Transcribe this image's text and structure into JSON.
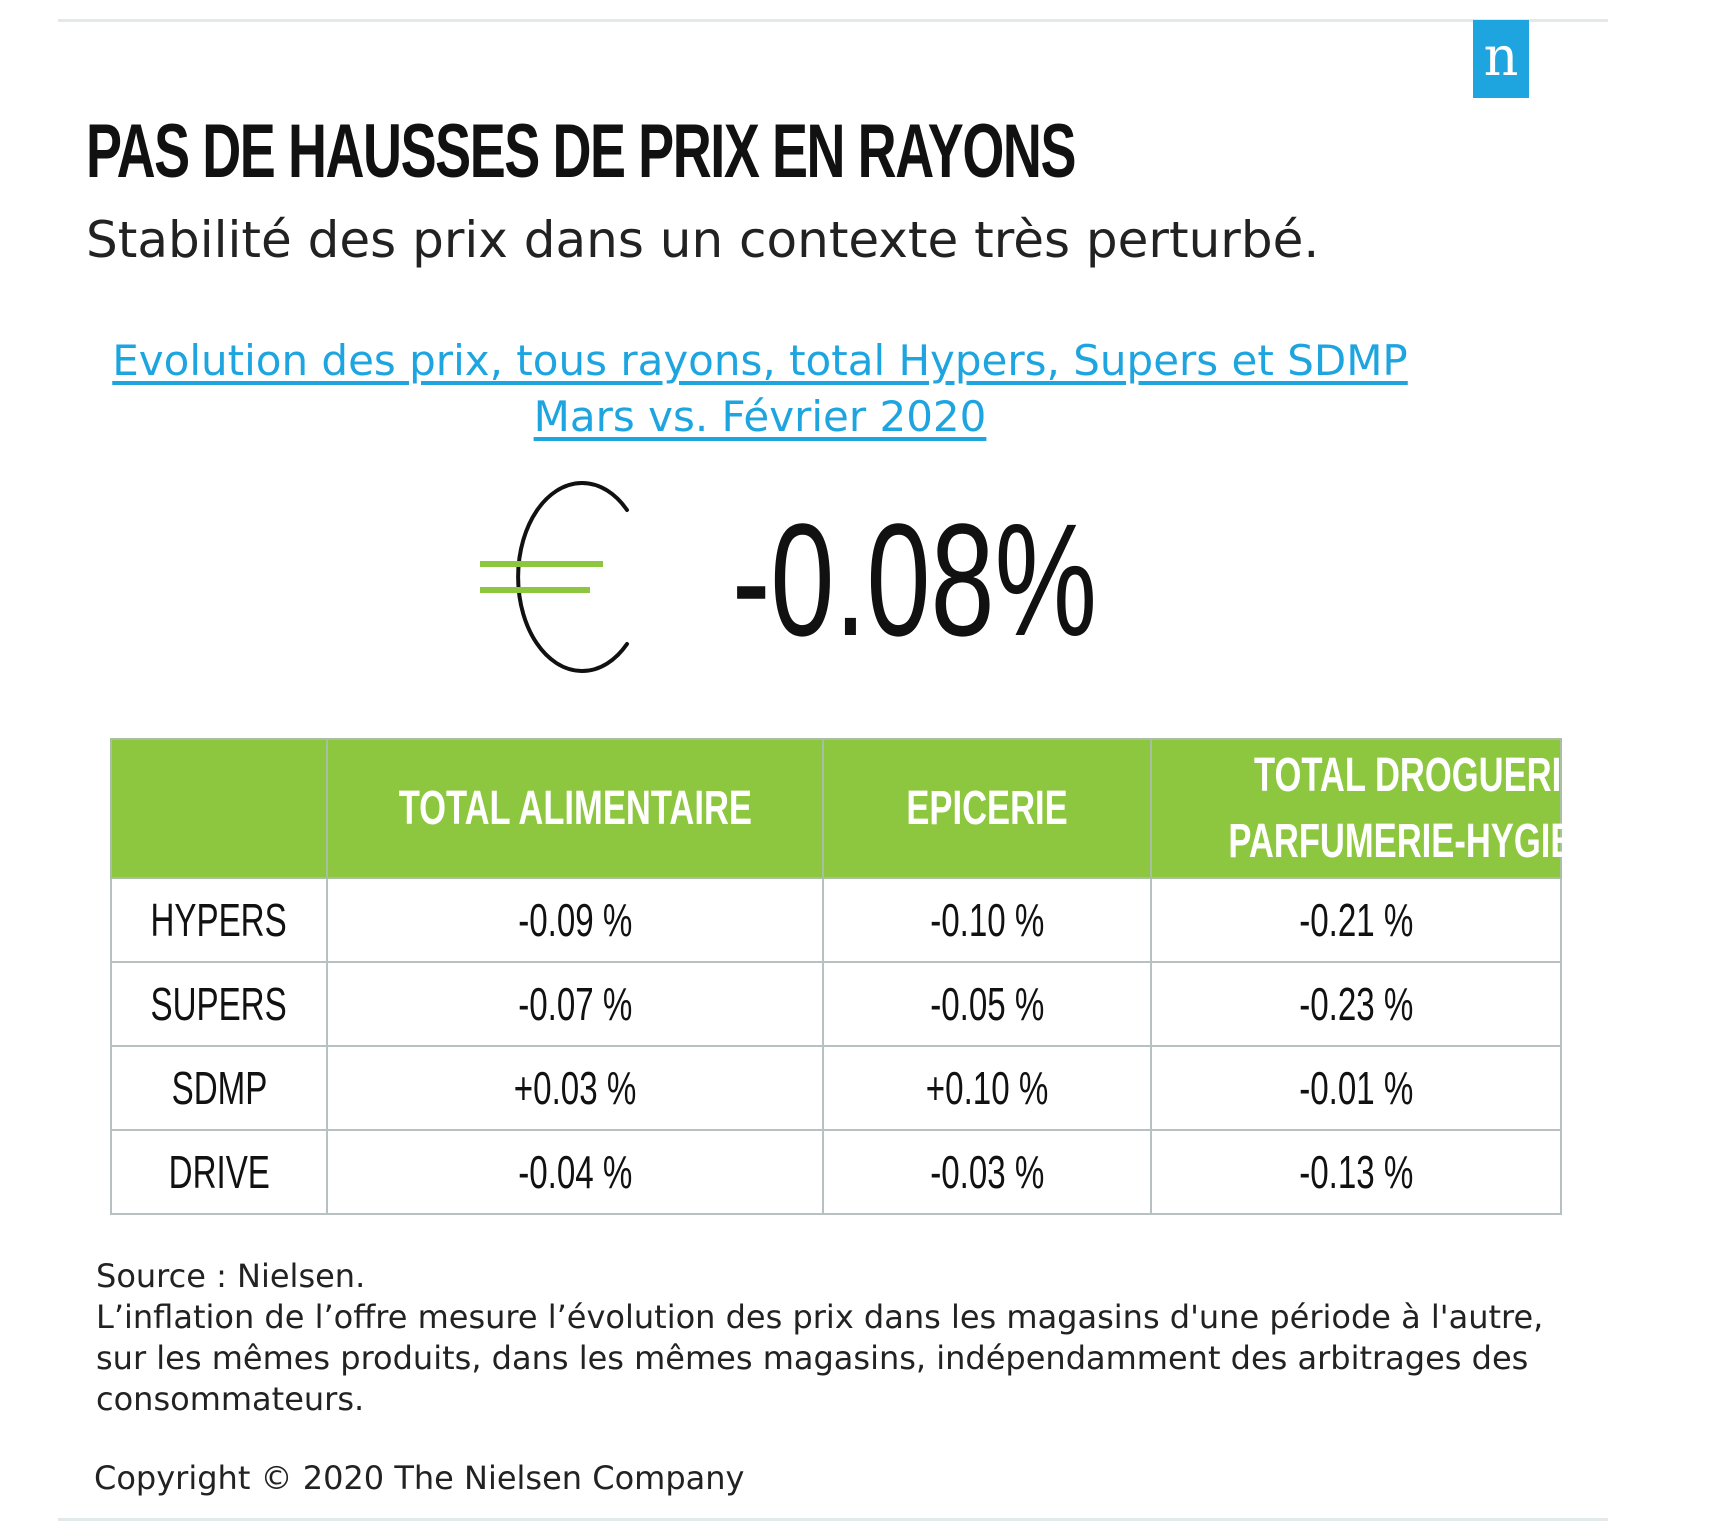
{
  "brand": {
    "logo_letter": "n",
    "logo_color": "#1ea5e0"
  },
  "title": "PAS DE HAUSSES DE PRIX EN RAYONS",
  "subtitle": "Stabilité des prix dans un contexte très perturbé.",
  "chart_heading": {
    "line1": "Evolution des prix, tous rayons, total Hypers, Supers et SDMP",
    "line2": "Mars vs. Février 2020"
  },
  "headline": {
    "icon": "euro-icon",
    "value": "-0.08%",
    "value_number": -0.08,
    "accent_color": "#8dc63f"
  },
  "chart_data": {
    "type": "table",
    "columns": [
      "",
      "TOTAL ALIMENTAIRE",
      "EPICERIE",
      "TOTAL DROGUERIE-PARFUMERIE-HYGIENE"
    ],
    "column_lines": {
      "c1": [
        "TOTAL ALIMENTAIRE"
      ],
      "c2": [
        "EPICERIE"
      ],
      "c3": [
        "TOTAL DROGUERIE-",
        "PARFUMERIE-HYGIENE"
      ]
    },
    "rows": [
      {
        "label": "HYPERS",
        "cells": [
          "-0.09 %",
          "-0.10 %",
          "-0.21 %"
        ],
        "values": [
          -0.09,
          -0.1,
          -0.21
        ]
      },
      {
        "label": "SUPERS",
        "cells": [
          "-0.07 %",
          "-0.05 %",
          "-0.23 %"
        ],
        "values": [
          -0.07,
          -0.05,
          -0.23
        ]
      },
      {
        "label": "SDMP",
        "cells": [
          "+0.03 %",
          "+0.10 %",
          "-0.01 %"
        ],
        "values": [
          0.03,
          0.1,
          -0.01
        ]
      },
      {
        "label": "DRIVE",
        "cells": [
          "-0.04 %",
          "-0.03 %",
          "-0.13 %"
        ],
        "values": [
          -0.04,
          -0.03,
          -0.13
        ]
      }
    ],
    "header_color": "#8dc63f",
    "unit": "%"
  },
  "footnote": {
    "source": "Source : Nielsen.",
    "text": "L’inflation de l’offre mesure l’évolution des prix dans les magasins d'une période à l'autre, sur les mêmes produits, dans les mêmes magasins, indépendamment des arbitrages des consommateurs."
  },
  "copyright": "Copyright © 2020 The Nielsen Company"
}
